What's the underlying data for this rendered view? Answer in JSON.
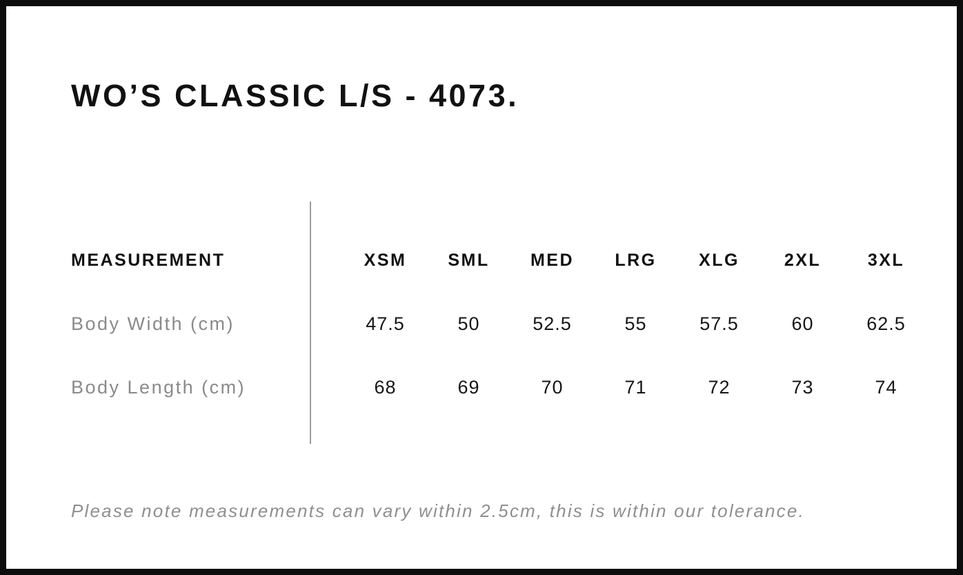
{
  "page": {
    "title": "WO’S CLASSIC L/S - 4073.",
    "note": "Please note measurements can vary within 2.5cm, this is within our tolerance."
  },
  "size_chart": {
    "measurement_header": "MEASUREMENT",
    "sizes": [
      "XSM",
      "SML",
      "MED",
      "LRG",
      "XLG",
      "2XL",
      "3XL"
    ],
    "rows": [
      {
        "label": "Body Width (cm)",
        "values": [
          "47.5",
          "50",
          "52.5",
          "55",
          "57.5",
          "60",
          "62.5"
        ]
      },
      {
        "label": "Body Length (cm)",
        "values": [
          "68",
          "69",
          "70",
          "71",
          "72",
          "73",
          "74"
        ]
      }
    ]
  },
  "colors": {
    "border": "#0d0d0d",
    "heading_text": "#111111",
    "muted_text": "#8a8a8a",
    "divider": "#9b9b9b",
    "background": "#ffffff"
  }
}
